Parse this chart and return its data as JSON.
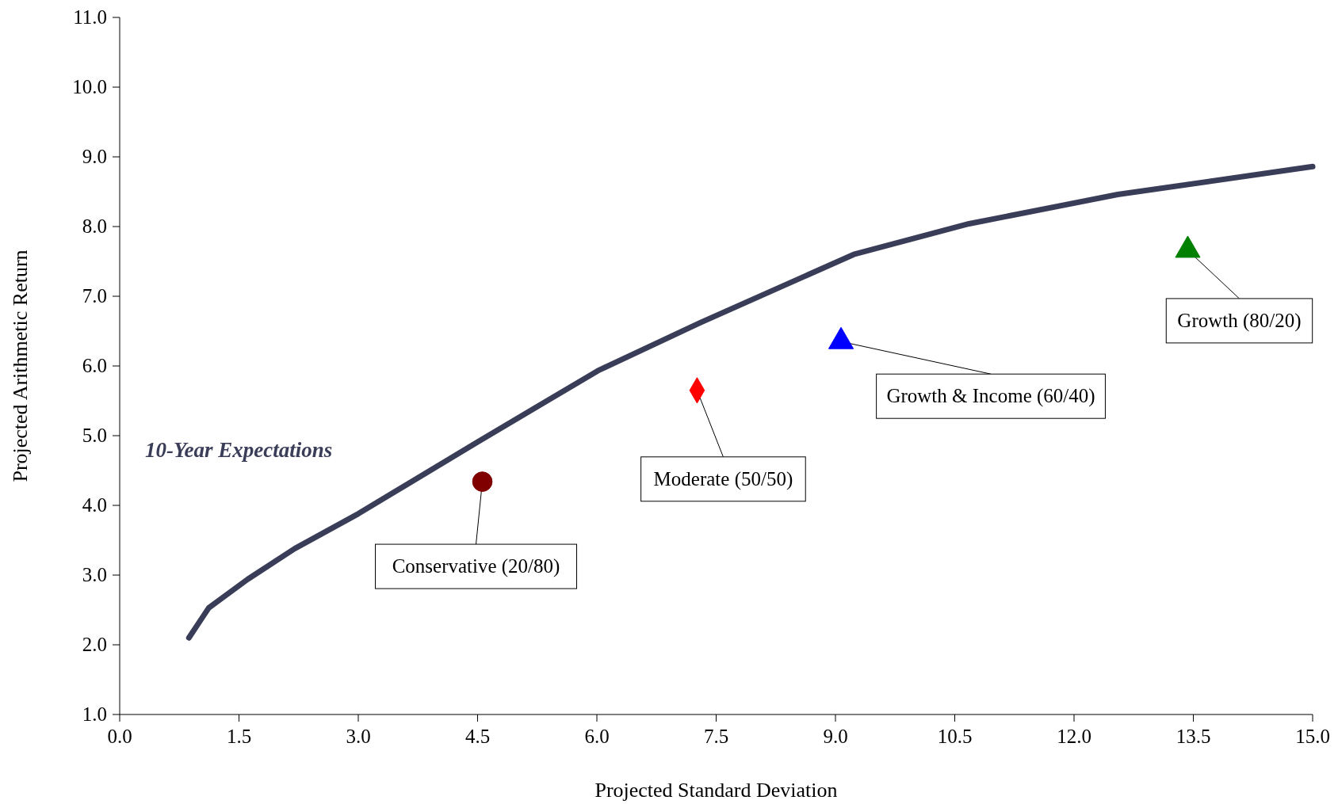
{
  "chart_data": {
    "type": "line",
    "xlabel": "Projected Standard Deviation",
    "ylabel": "Projected Arithmetic Return",
    "annotations": [
      "10-Year Expectations"
    ],
    "xlim": [
      0,
      15
    ],
    "ylim": [
      1,
      11
    ],
    "xticks": [
      {
        "value": 0,
        "label": "0.0"
      },
      {
        "value": 1.5,
        "label": "1.5"
      },
      {
        "value": 3,
        "label": "3.0"
      },
      {
        "value": 4.5,
        "label": "4.5"
      },
      {
        "value": 6,
        "label": "6.0"
      },
      {
        "value": 7.5,
        "label": "7.5"
      },
      {
        "value": 9,
        "label": "9.0"
      },
      {
        "value": 10.5,
        "label": "10.5"
      },
      {
        "value": 12,
        "label": "12.0"
      },
      {
        "value": 13.5,
        "label": "13.5"
      },
      {
        "value": 15,
        "label": "15.0"
      }
    ],
    "yticks": [
      {
        "value": 1,
        "label": "1.0"
      },
      {
        "value": 2,
        "label": "2.0"
      },
      {
        "value": 3,
        "label": "3.0"
      },
      {
        "value": 4,
        "label": "4.0"
      },
      {
        "value": 5,
        "label": "5.0"
      },
      {
        "value": 6,
        "label": "6.0"
      },
      {
        "value": 7,
        "label": "7.0"
      },
      {
        "value": 8,
        "label": "8.0"
      },
      {
        "value": 9,
        "label": "9.0"
      },
      {
        "value": 10,
        "label": "10.0"
      },
      {
        "value": 11,
        "label": "11.0"
      }
    ],
    "grid": false,
    "series": [
      {
        "color": "#3a3d58",
        "x": [
          0.87,
          1.12,
          1.61,
          2.2,
          3.0,
          4.5,
          6.01,
          7.3,
          9.23,
          10.68,
          12.55,
          15.0
        ],
        "values": [
          2.1,
          2.53,
          2.94,
          3.38,
          3.88,
          4.91,
          5.93,
          6.62,
          7.6,
          8.04,
          8.46,
          8.86
        ]
      },
      {
        "type": "scatter",
        "name": "Conservative (20/80)",
        "color": "#800000",
        "marker": "circle",
        "x": [
          4.56
        ],
        "values": [
          4.34
        ]
      },
      {
        "type": "scatter",
        "name": "Moderate (50/50)",
        "color": "#ff0000",
        "marker": "diamond",
        "x": [
          7.26
        ],
        "values": [
          5.65
        ]
      },
      {
        "type": "scatter",
        "name": "Growth & Income (60/40)",
        "color": "#0000ff",
        "marker": "triangle",
        "x": [
          9.07
        ],
        "values": [
          6.35
        ]
      },
      {
        "type": "scatter",
        "name": "Growth (80/20)",
        "color": "#008000",
        "marker": "triangle",
        "x": [
          13.43
        ],
        "values": [
          7.66
        ]
      }
    ]
  }
}
